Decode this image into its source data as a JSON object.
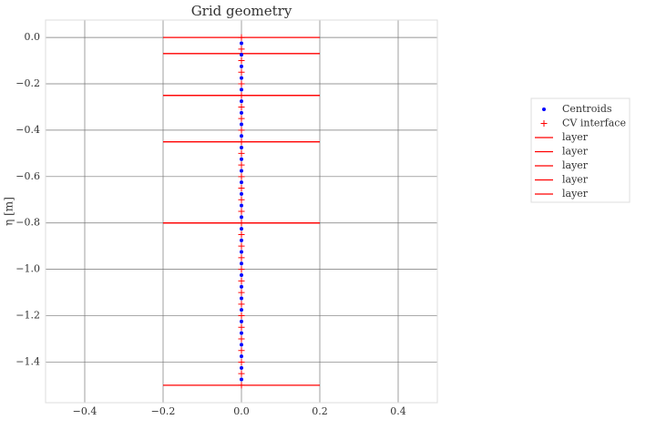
{
  "chart_data": {
    "type": "scatter",
    "title": "Grid geometry",
    "y_label": "η [m]",
    "xlim": [
      -0.5,
      0.5
    ],
    "ylim": [
      -1.575,
      0.075
    ],
    "grid": true,
    "legend": "outside right",
    "xticks": [
      {
        "value": -0.4,
        "label": "−0.4"
      },
      {
        "value": -0.2,
        "label": "−0.2"
      },
      {
        "value": 0,
        "label": "0.0"
      },
      {
        "value": 0.2,
        "label": "0.2"
      },
      {
        "value": 0.4,
        "label": "0.4"
      }
    ],
    "yticks": [
      {
        "value": 0,
        "label": "0.0"
      },
      {
        "value": -0.2,
        "label": "−0.2"
      },
      {
        "value": -0.4,
        "label": "−0.4"
      },
      {
        "value": -0.6,
        "label": "−0.6"
      },
      {
        "value": -0.8,
        "label": "−0.8"
      },
      {
        "value": -1.0,
        "label": "−1.0"
      },
      {
        "value": -1.2,
        "label": "−1.2"
      },
      {
        "value": -1.4,
        "label": "−1.4"
      }
    ],
    "series": [
      {
        "name": "Centroids",
        "kind": "dot",
        "color": "#0000ff",
        "x": [
          0,
          0,
          0,
          0,
          0,
          0,
          0,
          0,
          0,
          0,
          0,
          0,
          0,
          0,
          0,
          0,
          0,
          0,
          0,
          0,
          0,
          0,
          0,
          0,
          0,
          0,
          0,
          0,
          0,
          0
        ],
        "values": [
          -0.025,
          -0.075,
          -0.125,
          -0.175,
          -0.225,
          -0.275,
          -0.325,
          -0.375,
          -0.425,
          -0.475,
          -0.525,
          -0.575,
          -0.625,
          -0.675,
          -0.725,
          -0.775,
          -0.825,
          -0.875,
          -0.925,
          -0.975,
          -1.025,
          -1.075,
          -1.125,
          -1.175,
          -1.225,
          -1.275,
          -1.325,
          -1.375,
          -1.425,
          -1.475
        ]
      },
      {
        "name": "CV interface",
        "kind": "plus",
        "color": "#ff0000",
        "x": [
          0,
          0,
          0,
          0,
          0,
          0,
          0,
          0,
          0,
          0,
          0,
          0,
          0,
          0,
          0,
          0,
          0,
          0,
          0,
          0,
          0,
          0,
          0,
          0,
          0,
          0,
          0,
          0,
          0,
          0,
          0
        ],
        "values": [
          0,
          -0.05,
          -0.1,
          -0.15,
          -0.2,
          -0.25,
          -0.3,
          -0.35,
          -0.4,
          -0.45,
          -0.5,
          -0.55,
          -0.6,
          -0.65,
          -0.7,
          -0.75,
          -0.8,
          -0.85,
          -0.9,
          -0.95,
          -1.0,
          -1.05,
          -1.1,
          -1.15,
          -1.2,
          -1.25,
          -1.3,
          -1.35,
          -1.4,
          -1.45,
          -1.5
        ]
      },
      {
        "name": "layer",
        "kind": "hline",
        "color": "#ff0000",
        "x": [
          -0.2,
          0.2
        ],
        "values": [
          0,
          -0.07
        ]
      },
      {
        "name": "layer",
        "kind": "hline",
        "color": "#ff0000",
        "x": [
          -0.2,
          0.2
        ],
        "values": [
          -0.07,
          -0.25
        ]
      },
      {
        "name": "layer",
        "kind": "hline",
        "color": "#ff0000",
        "x": [
          -0.2,
          0.2
        ],
        "values": [
          -0.25,
          -0.45
        ]
      },
      {
        "name": "layer",
        "kind": "hline",
        "color": "#ff0000",
        "x": [
          -0.2,
          0.2
        ],
        "values": [
          -0.45,
          -0.8
        ]
      },
      {
        "name": "layer",
        "kind": "hline",
        "color": "#ff0000",
        "x": [
          -0.2,
          0.2
        ],
        "values": [
          -0.8,
          -1.5
        ]
      }
    ]
  }
}
